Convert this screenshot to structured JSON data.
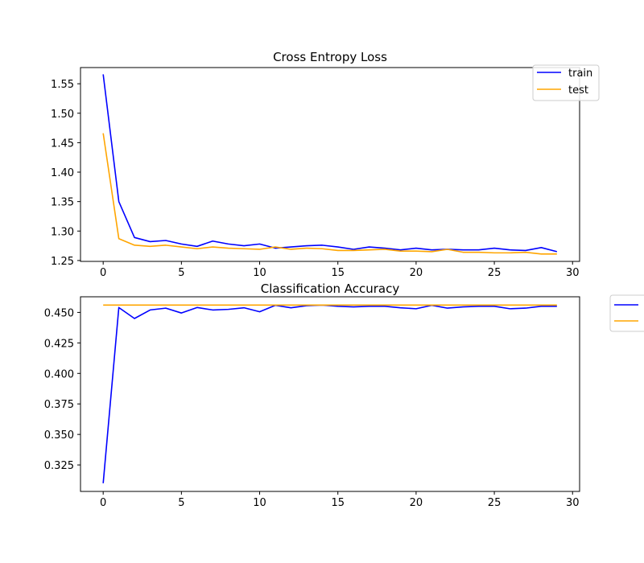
{
  "chart_data": [
    {
      "type": "line",
      "title": "Cross Entropy Loss",
      "xlim": [
        -1.45,
        30.45
      ],
      "ylim": [
        1.2485,
        1.5775
      ],
      "xticks": [
        0,
        5,
        10,
        15,
        20,
        25,
        30
      ],
      "yticks": [
        1.25,
        1.3,
        1.35,
        1.4,
        1.45,
        1.5,
        1.55
      ],
      "ytick_labels": [
        "1.25",
        "1.30",
        "1.35",
        "1.40",
        "1.45",
        "1.50",
        "1.55"
      ],
      "legend": {
        "placement": "top-right",
        "entries": [
          "train",
          "test"
        ],
        "visible": true
      },
      "x": [
        0,
        1,
        2,
        3,
        4,
        5,
        6,
        7,
        8,
        9,
        10,
        11,
        12,
        13,
        14,
        15,
        16,
        17,
        18,
        19,
        20,
        21,
        22,
        23,
        24,
        25,
        26,
        27,
        28,
        29
      ],
      "series": [
        {
          "name": "train",
          "color": "#0000ff",
          "values": [
            1.566,
            1.35,
            1.289,
            1.282,
            1.284,
            1.278,
            1.274,
            1.283,
            1.278,
            1.275,
            1.278,
            1.271,
            1.273,
            1.275,
            1.276,
            1.273,
            1.269,
            1.273,
            1.271,
            1.268,
            1.271,
            1.268,
            1.269,
            1.268,
            1.268,
            1.271,
            1.268,
            1.267,
            1.272,
            1.265
          ]
        },
        {
          "name": "test",
          "color": "#ffa500",
          "values": [
            1.466,
            1.287,
            1.276,
            1.274,
            1.276,
            1.273,
            1.27,
            1.273,
            1.271,
            1.27,
            1.269,
            1.273,
            1.269,
            1.271,
            1.27,
            1.267,
            1.267,
            1.268,
            1.269,
            1.266,
            1.266,
            1.265,
            1.269,
            1.264,
            1.264,
            1.263,
            1.263,
            1.264,
            1.261,
            1.261
          ]
        }
      ]
    },
    {
      "type": "line",
      "title": "Classification Accuracy",
      "xlim": [
        -1.45,
        30.45
      ],
      "ylim": [
        0.3033,
        0.4628
      ],
      "xticks": [
        0,
        5,
        10,
        15,
        20,
        25,
        30
      ],
      "yticks": [
        0.325,
        0.35,
        0.375,
        0.4,
        0.425,
        0.45
      ],
      "ytick_labels": [
        "0.325",
        "0.350",
        "0.375",
        "0.400",
        "0.425",
        "0.450"
      ],
      "legend": {
        "placement": "outside-right",
        "entries": [
          "",
          ""
        ],
        "visible": true
      },
      "x": [
        0,
        1,
        2,
        3,
        4,
        5,
        6,
        7,
        8,
        9,
        10,
        11,
        12,
        13,
        14,
        15,
        16,
        17,
        18,
        19,
        20,
        21,
        22,
        23,
        24,
        25,
        26,
        27,
        28,
        29
      ],
      "series": [
        {
          "color": "#0000ff",
          "values": [
            0.31,
            0.454,
            0.445,
            0.452,
            0.4535,
            0.4495,
            0.454,
            0.452,
            0.4525,
            0.4538,
            0.4505,
            0.4558,
            0.4538,
            0.4555,
            0.456,
            0.455,
            0.4545,
            0.455,
            0.455,
            0.4538,
            0.453,
            0.4558,
            0.4535,
            0.4545,
            0.455,
            0.455,
            0.453,
            0.4535,
            0.455,
            0.455
          ]
        },
        {
          "color": "#ffa500",
          "values": [
            0.456,
            0.456,
            0.456,
            0.456,
            0.456,
            0.456,
            0.456,
            0.456,
            0.456,
            0.456,
            0.456,
            0.456,
            0.456,
            0.456,
            0.456,
            0.456,
            0.456,
            0.456,
            0.456,
            0.456,
            0.456,
            0.456,
            0.456,
            0.456,
            0.456,
            0.456,
            0.456,
            0.456,
            0.456,
            0.456
          ]
        }
      ]
    }
  ]
}
